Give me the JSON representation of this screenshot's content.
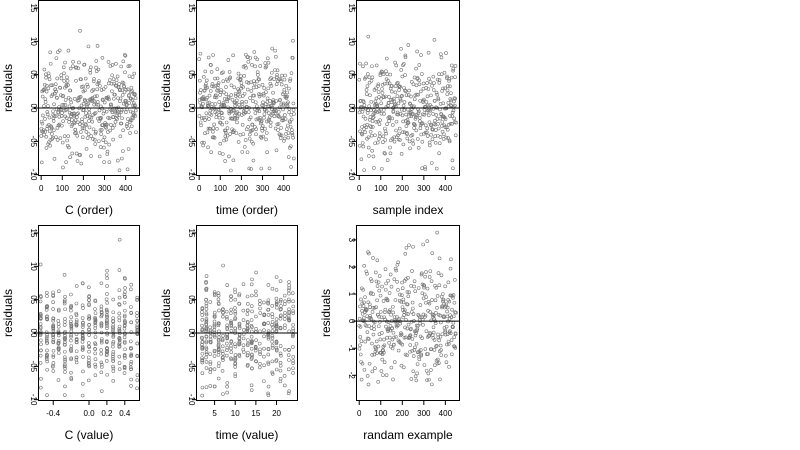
{
  "chart_data": [
    {
      "type": "scatter",
      "xlabel": "C (order)",
      "ylabel": "residuals",
      "xlim": [
        -15,
        468
      ],
      "ylim": [
        -10.2,
        16.2
      ],
      "xticks": [
        0,
        100,
        200,
        300,
        400
      ],
      "xtick_labels": [
        "0",
        "100",
        "200",
        "300",
        "400"
      ],
      "yticks": [
        -10,
        -5,
        0,
        5,
        10,
        15
      ],
      "ytick_labels": [
        "-10",
        "-05",
        "00",
        "05",
        "10",
        "15"
      ],
      "reference_line_y": 0,
      "grid": false,
      "generator": {
        "kind": "index",
        "n": 450,
        "seed": 11,
        "sd": 3.7,
        "clip": [
          -9.4,
          15.2
        ]
      }
    },
    {
      "type": "scatter",
      "xlabel": "time (order)",
      "ylabel": "residuals",
      "xlim": [
        -15,
        468
      ],
      "ylim": [
        -10.2,
        16.2
      ],
      "xticks": [
        0,
        100,
        200,
        300,
        400
      ],
      "xtick_labels": [
        "0",
        "100",
        "200",
        "300",
        "400"
      ],
      "yticks": [
        -10,
        -5,
        0,
        5,
        10,
        15
      ],
      "ytick_labels": [
        "-10",
        "-05",
        "00",
        "05",
        "10",
        "15"
      ],
      "reference_line_y": 0,
      "grid": false,
      "generator": {
        "kind": "index",
        "n": 450,
        "seed": 23,
        "sd": 3.7,
        "clip": [
          -9.4,
          15.2
        ]
      }
    },
    {
      "type": "scatter",
      "xlabel": "sample index",
      "ylabel": "residuals",
      "xlim": [
        -15,
        468
      ],
      "ylim": [
        -10.2,
        16.2
      ],
      "xticks": [
        0,
        100,
        200,
        300,
        400
      ],
      "xtick_labels": [
        "0",
        "100",
        "200",
        "300",
        "400"
      ],
      "yticks": [
        -10,
        -5,
        0,
        5,
        10,
        15
      ],
      "ytick_labels": [
        "-10",
        "-05",
        "00",
        "05",
        "10",
        "15"
      ],
      "reference_line_y": 0,
      "grid": false,
      "generator": {
        "kind": "index",
        "n": 450,
        "seed": 37,
        "sd": 3.7,
        "clip": [
          -9.4,
          15.2
        ]
      }
    },
    {
      "type": "scatter",
      "xlabel": "C (value)",
      "ylabel": "residuals",
      "xlim": [
        -0.57,
        0.57
      ],
      "ylim": [
        -10.2,
        16.2
      ],
      "xticks": [
        -0.4,
        0.0,
        0.2,
        0.4
      ],
      "xtick_labels": [
        "-0.4",
        "0.0",
        "0.2",
        "0.4"
      ],
      "yticks": [
        -10,
        -5,
        0,
        5,
        10,
        15
      ],
      "ytick_labels": [
        "-10",
        "-05",
        "00",
        "05",
        "10",
        "15"
      ],
      "reference_line_y": 0,
      "grid": false,
      "x_levels": [
        -0.54,
        -0.47,
        -0.4,
        -0.34,
        -0.27,
        -0.2,
        -0.14,
        -0.07,
        0.0,
        0.07,
        0.14,
        0.2,
        0.27,
        0.34,
        0.4,
        0.47,
        0.54
      ],
      "generator": {
        "kind": "levels",
        "n": 450,
        "seed": 41,
        "sd": 3.7,
        "clip": [
          -9.4,
          15.2
        ]
      }
    },
    {
      "type": "scatter",
      "xlabel": "time (value)",
      "ylabel": "residuals",
      "xlim": [
        0.5,
        25.2
      ],
      "ylim": [
        -10.2,
        16.2
      ],
      "xticks": [
        5,
        10,
        15,
        20
      ],
      "xtick_labels": [
        "5",
        "10",
        "15",
        "20"
      ],
      "yticks": [
        -10,
        -5,
        0,
        5,
        10,
        15
      ],
      "ytick_labels": [
        "-10",
        "-05",
        "00",
        "05",
        "10",
        "15"
      ],
      "reference_line_y": 0,
      "grid": false,
      "x_levels": [
        2,
        3,
        4,
        5,
        6,
        7,
        8,
        9,
        10,
        11,
        12,
        13,
        14,
        15,
        16,
        17,
        18,
        19,
        20,
        21,
        22,
        23,
        24
      ],
      "generator": {
        "kind": "levels",
        "n": 450,
        "seed": 53,
        "sd": 3.7,
        "clip": [
          -9.4,
          15.2
        ]
      }
    },
    {
      "type": "scatter",
      "xlabel": "randam example",
      "ylabel": "residuals",
      "xlim": [
        -15,
        468
      ],
      "ylim": [
        -2.95,
        3.55
      ],
      "xticks": [
        0,
        100,
        200,
        300,
        400
      ],
      "xtick_labels": [
        "0",
        "100",
        "200",
        "300",
        "400"
      ],
      "yticks": [
        -2,
        -1,
        0,
        1,
        2,
        3
      ],
      "ytick_labels": [
        "-2",
        "-1",
        "0",
        "1",
        "2",
        "3"
      ],
      "reference_line_y": 0,
      "grid": false,
      "generator": {
        "kind": "index",
        "n": 450,
        "seed": 67,
        "sd": 1.0,
        "clip": [
          -2.6,
          3.3
        ]
      }
    }
  ]
}
